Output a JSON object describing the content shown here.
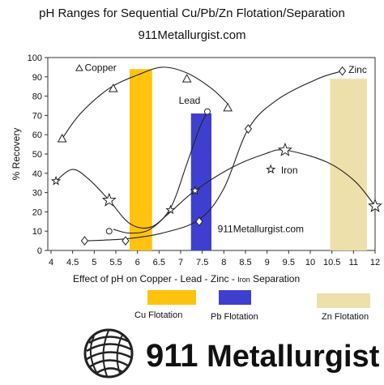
{
  "title": "pH Ranges for Sequential Cu/Pb/Zn Flotation/Separation",
  "subtitle": "911Metallurgist.com",
  "chart_data": {
    "type": "line",
    "title": "pH Ranges for Sequential Cu/Pb/Zn Flotation/Separation",
    "subtitle": "911Metallurgist.com",
    "xlabel_parts": [
      "Effect of pH on  Copper - Lead - Zinc - ",
      "Iron",
      "  Separation"
    ],
    "ylabel": "% Recovery",
    "xlim": [
      4,
      12
    ],
    "ylim": [
      0,
      100
    ],
    "xticks": [
      "4",
      "4.5",
      "5",
      "5.5",
      "6",
      "6.5",
      "7",
      "7.5",
      "8",
      "8.5",
      "9",
      "9.5",
      "10",
      "10.5",
      "11",
      "12"
    ],
    "yticks": [
      0,
      10,
      20,
      30,
      40,
      50,
      60,
      70,
      80,
      90,
      100
    ],
    "watermark": "911Metallurgist.com",
    "bands": [
      {
        "name": "Cu Flotation",
        "x": [
          6.0,
          6.55
        ],
        "ymax": 94,
        "color": "#ffc30e"
      },
      {
        "name": "Pb Flotation",
        "x": [
          7.5,
          8.0
        ],
        "ymax": 71,
        "color": "#3f3fcf"
      },
      {
        "name": "Zn Flotation",
        "x": [
          10.9,
          11.8
        ],
        "ymax": 89,
        "color": "#ede0aa"
      }
    ],
    "series": [
      {
        "name": "Copper",
        "marker": "triangle",
        "points": [
          [
            4.35,
            58
          ],
          [
            5.6,
            84
          ],
          [
            7.4,
            89
          ],
          [
            8.4,
            74
          ]
        ],
        "curve": [
          [
            4.35,
            58
          ],
          [
            4.8,
            71
          ],
          [
            5.5,
            84
          ],
          [
            6.2,
            91
          ],
          [
            6.8,
            95
          ],
          [
            7.4,
            92
          ],
          [
            8.0,
            84
          ],
          [
            8.4,
            76
          ]
        ]
      },
      {
        "name": "Lead",
        "marker": "circle",
        "points": [
          [
            5.5,
            10
          ],
          [
            7.9,
            72
          ]
        ],
        "curve": [
          [
            5.6,
            11
          ],
          [
            6.0,
            9
          ],
          [
            6.5,
            11
          ],
          [
            7.0,
            22
          ],
          [
            7.4,
            45
          ],
          [
            7.7,
            63
          ],
          [
            7.9,
            72
          ]
        ]
      },
      {
        "name": "Zinc",
        "marker": "diamond",
        "points": [
          [
            4.9,
            5
          ],
          [
            5.9,
            5
          ],
          [
            7.7,
            15
          ],
          [
            8.9,
            63
          ],
          [
            11.2,
            93
          ]
        ],
        "curve": [
          [
            4.9,
            5
          ],
          [
            5.9,
            6
          ],
          [
            6.8,
            9
          ],
          [
            7.7,
            16
          ],
          [
            8.3,
            32
          ],
          [
            8.9,
            63
          ],
          [
            9.6,
            78
          ],
          [
            10.6,
            89
          ],
          [
            11.2,
            93
          ]
        ]
      },
      {
        "name": "Iron",
        "marker": "star",
        "points": [
          [
            4.2,
            36
          ],
          [
            5.5,
            26
          ],
          [
            7.0,
            21
          ],
          [
            7.6,
            31
          ],
          [
            9.8,
            52
          ],
          [
            12.0,
            23
          ]
        ],
        "curve": [
          [
            4.2,
            36
          ],
          [
            4.6,
            42
          ],
          [
            5.0,
            37
          ],
          [
            5.5,
            26
          ],
          [
            6.0,
            14
          ],
          [
            6.5,
            12
          ],
          [
            7.0,
            20
          ],
          [
            7.6,
            31
          ],
          [
            8.5,
            43
          ],
          [
            9.3,
            50
          ],
          [
            9.8,
            52
          ],
          [
            10.8,
            46
          ],
          [
            11.5,
            36
          ],
          [
            12.0,
            23
          ]
        ]
      },
      {
        "name": "Iron (pH 9.5)",
        "marker": "star",
        "points": [
          [
            9.45,
            42
          ]
        ],
        "curve": []
      }
    ],
    "labels": [
      "Copper",
      "Lead",
      "Zinc",
      "Iron"
    ]
  },
  "legend": {
    "cu": {
      "label": "Cu Flotation",
      "color": "#ffc30e"
    },
    "pb": {
      "label": "Pb Flotation",
      "color": "#3f3fcf"
    },
    "zn": {
      "label": "Zn Flotation",
      "color": "#ede0aa"
    }
  },
  "logo": {
    "number": "911",
    "name": "Metallurgist"
  }
}
